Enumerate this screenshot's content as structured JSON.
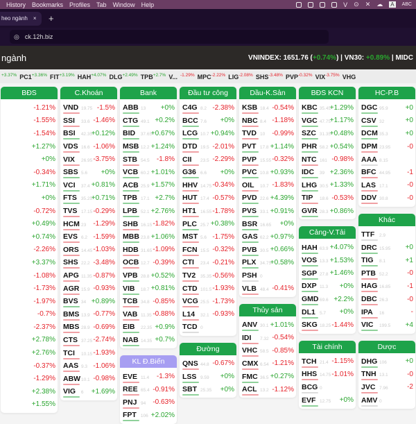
{
  "menubar": {
    "items": [
      "History",
      "Bookmarks",
      "Profiles",
      "Tab",
      "Window",
      "Help"
    ],
    "input_label": "ABC",
    "input_badge": "A"
  },
  "browser": {
    "tab_title": "heo ngành",
    "tab_close": "×",
    "new_tab": "+",
    "url": "ck.12h.biz"
  },
  "page": {
    "title": "ngành",
    "vnindex_label": "VNINDEX: 1651.76 (",
    "vnindex_change": "+0.74%",
    "vn30_label": ") | VN30: ",
    "vn30_change": "+0.89%",
    "midcap_label": " | MIDC"
  },
  "strip": [
    {
      "t": "",
      "c": "+3.37%",
      "up": true
    },
    {
      "t": "PC1",
      "c": "+3.36%",
      "up": true
    },
    {
      "t": "FIT",
      "c": "+3.19%",
      "up": true
    },
    {
      "t": "HAH",
      "c": "+4.07%",
      "up": true
    },
    {
      "t": "DLG",
      "c": "+2.49%",
      "up": true
    },
    {
      "t": "TPB",
      "c": "+2.7%",
      "up": true
    },
    {
      "t": "V...",
      "c": "",
      "up": true
    },
    {
      "t": "",
      "c": "-1.29%",
      "up": false
    },
    {
      "t": "MPC",
      "c": "-2.22%",
      "up": false
    },
    {
      "t": "LIG",
      "c": "-2.08%",
      "up": false
    },
    {
      "t": "SHS",
      "c": "-3.48%",
      "up": false
    },
    {
      "t": "PVP",
      "c": "-0.32%",
      "up": false
    },
    {
      "t": "VIX",
      "c": "-3.75%",
      "up": false
    },
    {
      "t": "VHG",
      "c": "",
      "up": false
    }
  ],
  "colors": {
    "up": "#2aa52f",
    "down": "#e6222a",
    "header": "#1ea34a",
    "header_alt": "#a79ef2"
  },
  "columns": [
    [
      {
        "title": "BĐS",
        "rows": [
          [
            "",
            "",
            "-1.21%"
          ],
          [
            "",
            "",
            "-1.55%"
          ],
          [
            "",
            "",
            "-1.54%"
          ],
          [
            "",
            "",
            "+1.27%"
          ],
          [
            "",
            "",
            "+0%"
          ],
          [
            "",
            "",
            "-0.34%"
          ],
          [
            "",
            "",
            "+1.71%"
          ],
          [
            "",
            "",
            "+0%"
          ],
          [
            "",
            "",
            "-0.72%"
          ],
          [
            "",
            "",
            "+0.49%"
          ],
          [
            "",
            "",
            "+0.74%"
          ],
          [
            "",
            "",
            "-2.26%"
          ],
          [
            "",
            "",
            "+3.37%"
          ],
          [
            "",
            "",
            "-1.08%"
          ],
          [
            "",
            "",
            "-1.73%"
          ],
          [
            "",
            "",
            "-1.97%"
          ],
          [
            "",
            "",
            "-0.7%"
          ],
          [
            "",
            "",
            "-2.37%"
          ],
          [
            "",
            "",
            "+2.78%"
          ],
          [
            "",
            "",
            "+2.76%"
          ],
          [
            "",
            "",
            "-0.37%"
          ],
          [
            "",
            "",
            "-1.29%"
          ],
          [
            "",
            "",
            "+2.38%"
          ],
          [
            "",
            "",
            "+1.55%"
          ]
        ]
      }
    ],
    [
      {
        "title": "C.Khoán",
        "rows": [
          [
            "VND",
            "19.75",
            "-1.5%"
          ],
          [
            "SSI",
            "33.6",
            "-1.46%"
          ],
          [
            "BSI",
            "42.35",
            "+0.12%"
          ],
          [
            "VDS",
            "16.6",
            "-1.06%"
          ],
          [
            "VIX",
            "26.95",
            "-3.75%"
          ],
          [
            "SBS",
            "5.6",
            "+0%"
          ],
          [
            "VCI",
            "37.4",
            "+0.81%"
          ],
          [
            "FTS",
            "35.25",
            "+0.71%"
          ],
          [
            "TVS",
            "17.15",
            "-0.29%"
          ],
          [
            "HCM",
            "23",
            "-1.29%"
          ],
          [
            "EVS",
            "6.2",
            "-1.59%"
          ],
          [
            "ORS",
            "14.45",
            "-1.03%"
          ],
          [
            "SHS",
            "22.2",
            "-3.48%"
          ],
          [
            "APG",
            "11.35",
            "-0.87%"
          ],
          [
            "AGR",
            "15.9",
            "-0.93%"
          ],
          [
            "BVS",
            "34",
            "+0.89%"
          ],
          [
            "BMS",
            "13.9",
            "-0.77%"
          ],
          [
            "MBS",
            "28.9",
            "-0.69%"
          ],
          [
            "CTS",
            "37.25",
            "-2.74%"
          ],
          [
            "TCI",
            "10.15",
            "-1.93%"
          ],
          [
            "AAS",
            "9.3",
            "-1.06%"
          ],
          [
            "ABW",
            "10.1",
            "-0.98%"
          ],
          [
            "VIG",
            "6",
            "+1.69%"
          ]
        ]
      }
    ],
    [
      {
        "title": "Bank",
        "rows": [
          [
            "ABB",
            "13",
            "+0%"
          ],
          [
            "CTG",
            "49.1",
            "+0.2%"
          ],
          [
            "BID",
            "37.65",
            "+0.67%"
          ],
          [
            "MSB",
            "12.2",
            "+1.24%"
          ],
          [
            "STB",
            "54.5",
            "-1.8%"
          ],
          [
            "VCB",
            "60.2",
            "+1.01%"
          ],
          [
            "ACB",
            "25.9",
            "+1.57%"
          ],
          [
            "TPB",
            "17.1",
            "+2.7%"
          ],
          [
            "LPB",
            "52.1",
            "+2.76%"
          ],
          [
            "SHB",
            "16.15",
            "-1.82%"
          ],
          [
            "MBB",
            "23.8",
            "+1.06%"
          ],
          [
            "HDB",
            "31.65",
            "-1.09%"
          ],
          [
            "OCB",
            "12.7",
            "-0.39%"
          ],
          [
            "VPB",
            "28.8",
            "+0.52%"
          ],
          [
            "VIB",
            "18.7",
            "+0.81%"
          ],
          [
            "TCB",
            "34.8",
            "-0.85%"
          ],
          [
            "VAB",
            "11.35",
            "-0.88%"
          ],
          [
            "EIB",
            "22.35",
            "+0.9%"
          ],
          [
            "NAB",
            "14.35",
            "+0.7%"
          ]
        ]
      },
      {
        "title": "KL Đ.Biến",
        "alt": true,
        "rows": [
          [
            "EVE",
            "11.4",
            "-1.3%"
          ],
          [
            "REE",
            "65.4",
            "-0.91%"
          ],
          [
            "PNJ",
            "94",
            "-0.63%"
          ],
          [
            "FPT",
            "106",
            "+2.02%"
          ]
        ]
      }
    ],
    [
      {
        "title": "Đầu tư công",
        "rows": [
          [
            "C4G",
            "8.2",
            "-2.38%"
          ],
          [
            "BCC",
            "7.6",
            "+0%"
          ],
          [
            "LCG",
            "10.7",
            "+0.94%"
          ],
          [
            "DTD",
            "19.5",
            "-2.01%"
          ],
          [
            "CII",
            "23.5",
            "-2.29%"
          ],
          [
            "G36",
            "6.6",
            "+0%"
          ],
          [
            "HHV",
            "14.75",
            "-0.34%"
          ],
          [
            "HUT",
            "17.4",
            "-0.57%"
          ],
          [
            "HT1",
            "16.55",
            "-1.78%"
          ],
          [
            "PLC",
            "25.7",
            "+0.38%"
          ],
          [
            "MST",
            "5.6",
            "-1.75%"
          ],
          [
            "FCN",
            "15.5",
            "-0.32%"
          ],
          [
            "CTI",
            "23.4",
            "-0.21%"
          ],
          [
            "TV2",
            "35.35",
            "-0.56%"
          ],
          [
            "CTD",
            "101.5",
            "-1.93%"
          ],
          [
            "VCG",
            "25.5",
            "-1.73%"
          ],
          [
            "L14",
            "32.1",
            "-0.93%"
          ],
          [
            "TCD",
            "0",
            ""
          ]
        ]
      },
      {
        "title": "Đường",
        "rows": [
          [
            "QNS",
            "44.8",
            "-0.67%"
          ],
          [
            "LSS",
            "9.59",
            "+0%"
          ],
          [
            "SBT",
            "25.35",
            "+0%"
          ]
        ]
      }
    ],
    [
      {
        "title": "Dầu-K.Sản",
        "rows": [
          [
            "KSB",
            "18.4",
            "-0.54%"
          ],
          [
            "NBC",
            "8.4",
            "-1.18%"
          ],
          [
            "TVD",
            "10",
            "-0.99%"
          ],
          [
            "PVT",
            "17.8",
            "+1.14%"
          ],
          [
            "PVP",
            "15.55",
            "-0.32%"
          ],
          [
            "PVC",
            "10.8",
            "+0.93%"
          ],
          [
            "OIL",
            "10.7",
            "-1.83%"
          ],
          [
            "PVD",
            "22.6",
            "+4.39%"
          ],
          [
            "PVS",
            "33.1",
            "+0.91%"
          ],
          [
            "BSR",
            "16.65",
            "+0%"
          ],
          [
            "GAS",
            "62.2",
            "+0.97%"
          ],
          [
            "PVB",
            "30.5",
            "+0.66%"
          ],
          [
            "PLX",
            "34.75",
            "+0.58%"
          ],
          [
            "PSH",
            "0",
            ""
          ],
          [
            "VLB",
            "48.4",
            "-0.41%"
          ]
        ]
      },
      {
        "title": "Thủy sản",
        "rows": [
          [
            "ANV",
            "30.1",
            "+1.01%"
          ],
          [
            "IDI",
            "7.32",
            "-0.54%"
          ],
          [
            "VHC",
            "58.5",
            "-0.85%"
          ],
          [
            "CMX",
            "6.54",
            "-1.21%"
          ],
          [
            "FMC",
            "36.5",
            "+0.27%"
          ],
          [
            "ACL",
            "13.2",
            "-1.12%"
          ]
        ]
      }
    ],
    [
      {
        "title": "BĐS KCN",
        "rows": [
          [
            "KBC",
            "35.45",
            "+1.29%"
          ],
          [
            "VGC",
            "47.75",
            "+1.17%"
          ],
          [
            "SZC",
            "31.35",
            "+0.48%"
          ],
          [
            "PHR",
            "58.2",
            "+0.54%"
          ],
          [
            "NTC",
            "161",
            "-0.98%"
          ],
          [
            "IDC",
            "39",
            "+2.36%"
          ],
          [
            "LHG",
            "30.5",
            "+1.33%"
          ],
          [
            "TIP",
            "18.6",
            "-0.53%"
          ],
          [
            "GVR",
            "28.3",
            "+0.86%"
          ]
        ]
      },
      {
        "title": "Cảng-V.Tải",
        "rows": [
          [
            "HAH",
            "63.9",
            "+4.07%"
          ],
          [
            "VOS",
            "13.3",
            "+1.53%"
          ],
          [
            "SGP",
            "27.8",
            "+1.46%"
          ],
          [
            "DXP",
            "11.3",
            "+0%"
          ],
          [
            "GMD",
            "69.6",
            "+2.2%"
          ],
          [
            "DL1",
            "5.7",
            "+0%"
          ],
          [
            "SKG",
            "18.25",
            "-1.44%"
          ]
        ]
      },
      {
        "title": "Tài chính",
        "rows": [
          [
            "TCH",
            "21.4",
            "-1.15%"
          ],
          [
            "HHS",
            "14.75",
            "-1.01%"
          ],
          [
            "BCG",
            "0",
            ""
          ],
          [
            "EVF",
            "12.75",
            "+0%"
          ]
        ]
      }
    ],
    [
      {
        "title": "HC-P.B",
        "rows": [
          [
            "DGC",
            "95.9",
            "+0"
          ],
          [
            "CSV",
            "32",
            "+0"
          ],
          [
            "DCM",
            "35.3",
            "+0"
          ],
          [
            "DPM",
            "23.95",
            "-0"
          ],
          [
            "AAA",
            "8.15",
            ""
          ],
          [
            "BFC",
            "44.95",
            "-1"
          ],
          [
            "LAS",
            "17.1",
            "-0"
          ],
          [
            "DDV",
            "30.8",
            "-0"
          ]
        ]
      },
      {
        "title": "Khác",
        "rows": [
          [
            "TTF",
            "2.9",
            ""
          ],
          [
            "DRC",
            "15.95",
            "+0"
          ],
          [
            "TIG",
            "8.1",
            "+1"
          ],
          [
            "PTB",
            "52.2",
            "-0"
          ],
          [
            "HAG",
            "16.85",
            "-1"
          ],
          [
            "DBC",
            "26.3",
            "-0"
          ],
          [
            "IPA",
            "16",
            "-"
          ],
          [
            "VIC",
            "199.5",
            "+4"
          ]
        ]
      },
      {
        "title": "Dược",
        "rows": [
          [
            "DHG",
            "106",
            "+0"
          ],
          [
            "TNH",
            "13.1",
            "-0"
          ],
          [
            "JVC",
            "7.96",
            "-2"
          ],
          [
            "AMV",
            "0",
            ""
          ]
        ]
      }
    ]
  ]
}
